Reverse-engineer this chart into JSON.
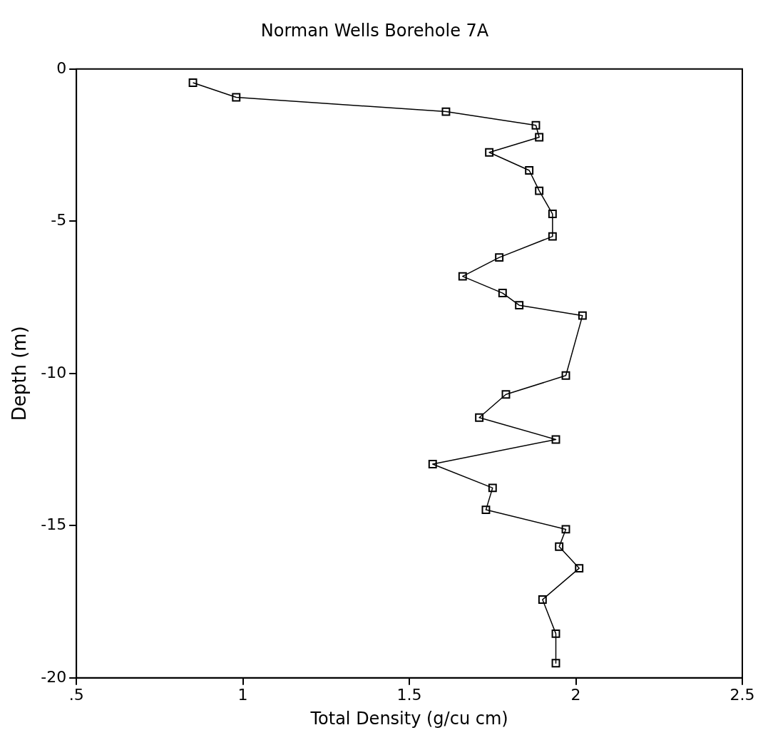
{
  "chart_data": {
    "type": "line",
    "title": "Norman Wells Borehole 7A",
    "xlabel": "Total Density (g/cu cm)",
    "ylabel": "Depth (m)",
    "xlim": [
      0.5,
      2.5
    ],
    "xticks": [
      {
        "value": 0.5,
        "label": ".5"
      },
      1,
      1.5,
      2,
      2.5
    ],
    "ylim": [
      -20,
      0
    ],
    "yticks": [
      0,
      -5,
      -10,
      -15,
      -20
    ],
    "grid": false,
    "legend": false,
    "marker": "square",
    "line_style": "solid",
    "series": [
      {
        "color": "#000000",
        "x": [
          0.85,
          0.98,
          1.61,
          1.88,
          1.89,
          1.74,
          1.86,
          1.89,
          1.93,
          1.93,
          1.77,
          1.66,
          1.78,
          1.83,
          2.02,
          1.97,
          1.79,
          1.71,
          1.94,
          1.57,
          1.75,
          1.73,
          1.97,
          1.95,
          2.01,
          1.9,
          1.94,
          1.94
        ],
        "values": [
          -0.45,
          -0.93,
          -1.4,
          -1.85,
          -2.24,
          -2.74,
          -3.33,
          -4.0,
          -4.76,
          -5.5,
          -6.19,
          -6.81,
          -7.36,
          -7.76,
          -8.1,
          -10.07,
          -10.69,
          -11.45,
          -12.17,
          -12.98,
          -13.76,
          -14.48,
          -15.12,
          -15.69,
          -16.4,
          -17.43,
          -18.55,
          -19.52
        ]
      }
    ]
  }
}
